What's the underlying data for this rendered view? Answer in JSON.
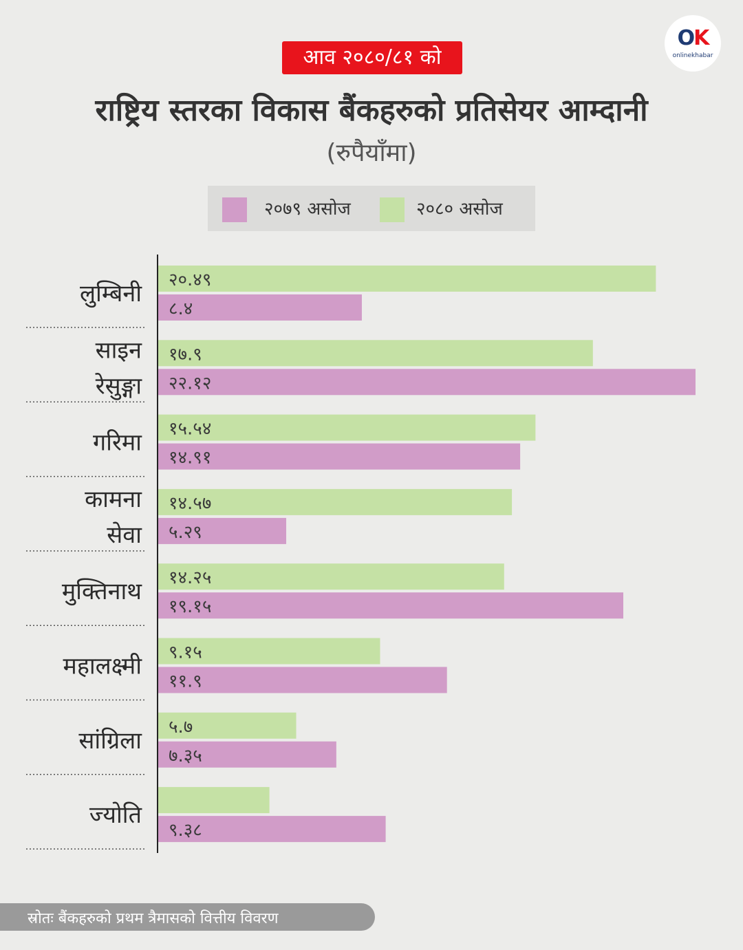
{
  "header": {
    "badge": "आव २०८०/८१ को",
    "title": "राष्ट्रिय स्तरका विकास बैंकहरुको प्रतिसेयर आम्दानी",
    "subtitle": "(रुपैयाँमा)"
  },
  "logo": {
    "mark_o": "O",
    "mark_k": "K",
    "text": "onlinekhabar"
  },
  "colors": {
    "series_2080": "#c5e1a5",
    "series_2079": "#d19cc8",
    "badge": "#e8141c"
  },
  "chart_data": {
    "type": "bar",
    "orientation": "horizontal",
    "title": "राष्ट्रिय स्तरका विकास बैंकहरुको प्रतिसेयर आम्दानी",
    "subtitle": "(रुपैयाँमा)",
    "legend_placement": "top",
    "xlim": [
      0,
      22.12
    ],
    "categories": [
      [
        "लुम्बिनी"
      ],
      [
        "साइन",
        "रेसुङ्गा"
      ],
      [
        "गरिमा"
      ],
      [
        "कामना",
        "सेवा"
      ],
      [
        "मुक्तिनाथ"
      ],
      [
        "महालक्ष्मी"
      ],
      [
        "सांग्रिला"
      ],
      [
        "ज्योति"
      ]
    ],
    "series": [
      {
        "name": "२०८० असोज",
        "color": "#c5e1a5",
        "values": [
          20.49,
          17.9,
          15.54,
          14.57,
          14.25,
          9.15,
          5.7,
          4.6
        ],
        "labels": [
          "२०.४९",
          "१७.९",
          "१५.५४",
          "१४.५७",
          "१४.२५",
          "९.१५",
          "५.७",
          ""
        ]
      },
      {
        "name": "२०७९ असोज",
        "color": "#d19cc8",
        "values": [
          8.4,
          22.12,
          14.91,
          5.29,
          19.15,
          11.9,
          7.35,
          9.38
        ],
        "labels": [
          "८.४",
          "२२.१२",
          "१४.९१",
          "५.२९",
          "१९.१५",
          "११.९",
          "७.३५",
          "९.३८"
        ]
      }
    ]
  },
  "footer": {
    "source": "स्रोतः बैंकहरुको प्रथम त्रैमासको वित्तीय विवरण"
  }
}
